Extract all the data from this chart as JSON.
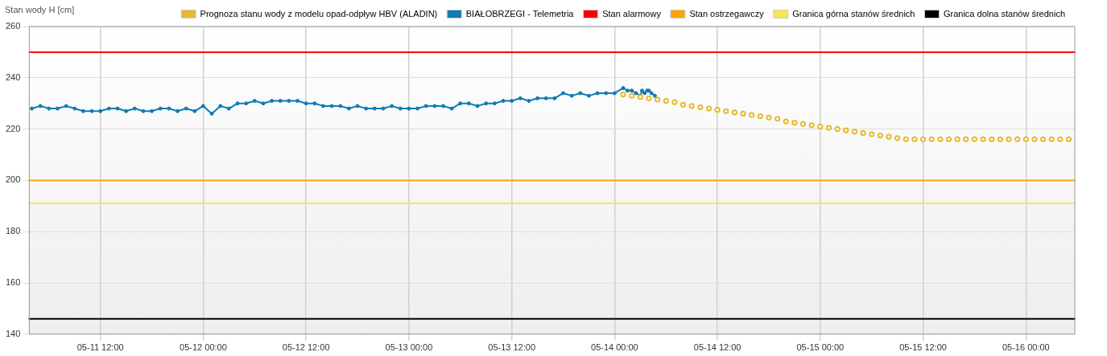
{
  "chart_data": {
    "type": "line",
    "ylabel": "Stan wody H [cm]",
    "legend": "top right",
    "grid": true,
    "marker": "circle",
    "xlim": [
      "--05-11T03:42",
      "--05-16T05:42"
    ],
    "xticks": [
      {
        "value": "--05-11T12:00",
        "label": "05-11 12:00"
      },
      {
        "value": "--05-12T00:00",
        "label": "05-12 00:00"
      },
      {
        "value": "--05-12T12:00",
        "label": "05-12 12:00"
      },
      {
        "value": "--05-13T00:00",
        "label": "05-13 00:00"
      },
      {
        "value": "--05-13T12:00",
        "label": "05-13 12:00"
      },
      {
        "value": "--05-14T00:00",
        "label": "05-14 00:00"
      },
      {
        "value": "--05-14T12:00",
        "label": "05-14 12:00"
      },
      {
        "value": "--05-15T00:00",
        "label": "05-15 00:00"
      },
      {
        "value": "--05-15T12:00",
        "label": "05-15 12:00"
      },
      {
        "value": "--05-16T00:00",
        "label": "05-16 00:00"
      }
    ],
    "ylim": [
      140,
      260
    ],
    "yticks": [
      140,
      160,
      180,
      200,
      220,
      240,
      260
    ],
    "series": [
      {
        "name": "Prognoza stanu wody z modelu opad-odpływ HBV (ALADIN)",
        "type": "scatter",
        "color": "#e8b930",
        "x": [
          "--05-14T01:00",
          "--05-14T02:00",
          "--05-14T03:00",
          "--05-14T04:00",
          "--05-14T05:00",
          "--05-14T06:00",
          "--05-14T07:00",
          "--05-14T08:00",
          "--05-14T09:00",
          "--05-14T10:00",
          "--05-14T11:00",
          "--05-14T12:00",
          "--05-14T13:00",
          "--05-14T14:00",
          "--05-14T15:00",
          "--05-14T16:00",
          "--05-14T17:00",
          "--05-14T18:00",
          "--05-14T19:00",
          "--05-14T20:00",
          "--05-14T21:00",
          "--05-14T22:00",
          "--05-14T23:00",
          "--05-15T00:00",
          "--05-15T01:00",
          "--05-15T02:00",
          "--05-15T03:00",
          "--05-15T04:00",
          "--05-15T05:00",
          "--05-15T06:00",
          "--05-15T07:00",
          "--05-15T08:00",
          "--05-15T09:00",
          "--05-15T10:00",
          "--05-15T11:00",
          "--05-15T12:00",
          "--05-15T13:00",
          "--05-15T14:00",
          "--05-15T15:00",
          "--05-15T16:00",
          "--05-15T17:00",
          "--05-15T18:00",
          "--05-15T19:00",
          "--05-15T20:00",
          "--05-15T21:00",
          "--05-15T22:00",
          "--05-15T23:00",
          "--05-16T00:00",
          "--05-16T01:00",
          "--05-16T02:00",
          "--05-16T03:00",
          "--05-16T04:00",
          "--05-16T05:00"
        ],
        "values": [
          233.5,
          233,
          232.5,
          232,
          231.5,
          231,
          230.5,
          229.5,
          229,
          228.5,
          228,
          227.5,
          227,
          226.5,
          226,
          225.5,
          225,
          224.5,
          224,
          223,
          222.5,
          222,
          221.5,
          221,
          220.5,
          220,
          219.5,
          219,
          218.5,
          218,
          217.5,
          217,
          216.5,
          216,
          216,
          216,
          216,
          216,
          216,
          216,
          216,
          216,
          216,
          216,
          216,
          216,
          216,
          216,
          216,
          216,
          216,
          216,
          216
        ]
      },
      {
        "name": "BIAŁOBRZEGI - Telemetria",
        "type": "line",
        "color": "#0f7cb3",
        "x": [
          "--05-11T04:00",
          "--05-11T05:00",
          "--05-11T06:00",
          "--05-11T07:00",
          "--05-11T08:00",
          "--05-11T09:00",
          "--05-11T10:00",
          "--05-11T11:00",
          "--05-11T12:00",
          "--05-11T13:00",
          "--05-11T14:00",
          "--05-11T15:00",
          "--05-11T16:00",
          "--05-11T17:00",
          "--05-11T18:00",
          "--05-11T19:00",
          "--05-11T20:00",
          "--05-11T21:00",
          "--05-11T22:00",
          "--05-11T23:00",
          "--05-12T00:00",
          "--05-12T01:00",
          "--05-12T02:00",
          "--05-12T03:00",
          "--05-12T04:00",
          "--05-12T05:00",
          "--05-12T06:00",
          "--05-12T07:00",
          "--05-12T08:00",
          "--05-12T09:00",
          "--05-12T10:00",
          "--05-12T11:00",
          "--05-12T12:00",
          "--05-12T13:00",
          "--05-12T14:00",
          "--05-12T15:00",
          "--05-12T16:00",
          "--05-12T17:00",
          "--05-12T18:00",
          "--05-12T19:00",
          "--05-12T20:00",
          "--05-12T21:00",
          "--05-12T22:00",
          "--05-12T23:00",
          "--05-13T00:00",
          "--05-13T01:00",
          "--05-13T02:00",
          "--05-13T03:00",
          "--05-13T04:00",
          "--05-13T05:00",
          "--05-13T06:00",
          "--05-13T07:00",
          "--05-13T08:00",
          "--05-13T09:00",
          "--05-13T10:00",
          "--05-13T11:00",
          "--05-13T12:00",
          "--05-13T13:00",
          "--05-13T14:00",
          "--05-13T15:00",
          "--05-13T16:00",
          "--05-13T17:00",
          "--05-13T18:00",
          "--05-13T19:00",
          "--05-13T20:00",
          "--05-13T21:00",
          "--05-13T22:00",
          "--05-13T23:00",
          "--05-14T00:00",
          "--05-14T01:00",
          "--05-14T01:30",
          "--05-14T02:00",
          "--05-14T02:30",
          "--05-14T03:00",
          "--05-14T03:12",
          "--05-14T03:30",
          "--05-14T03:48",
          "--05-14T04:00",
          "--05-14T04:18",
          "--05-14T04:42"
        ],
        "values": [
          228,
          229,
          228,
          228,
          229,
          228,
          227,
          227,
          227,
          228,
          228,
          227,
          228,
          227,
          227,
          228,
          228,
          227,
          228,
          227,
          229,
          226,
          229,
          228,
          230,
          230,
          231,
          230,
          231,
          231,
          231,
          231,
          230,
          230,
          229,
          229,
          229,
          228,
          229,
          228,
          228,
          228,
          229,
          228,
          228,
          228,
          229,
          229,
          229,
          228,
          230,
          230,
          229,
          230,
          230,
          231,
          231,
          232,
          231,
          232,
          232,
          232,
          234,
          233,
          234,
          233,
          234,
          234,
          234,
          236,
          235,
          235,
          234,
          233,
          235,
          234,
          235,
          235,
          234,
          233
        ]
      },
      {
        "name": "Stan alarmowy",
        "type": "line",
        "marker": "none",
        "color": "#ff0000",
        "x": [
          "--05-11T03:42",
          "--05-16T05:42"
        ],
        "values": [
          250,
          250
        ]
      },
      {
        "name": "Stan ostrzegawczy",
        "type": "line",
        "marker": "none",
        "color": "#ffa500",
        "x": [
          "--05-11T03:42",
          "--05-16T05:42"
        ],
        "values": [
          200,
          200
        ]
      },
      {
        "name": "Granica górna stanów średnich",
        "type": "line",
        "marker": "none",
        "color": "#f6e84a",
        "x": [
          "--05-11T03:42",
          "--05-16T05:42"
        ],
        "values": [
          191,
          191
        ]
      },
      {
        "name": "Granica dolna stanów średnich",
        "type": "line",
        "marker": "none",
        "color": "#000000",
        "x": [
          "--05-11T03:42",
          "--05-16T05:42"
        ],
        "values": [
          146,
          146
        ]
      }
    ]
  }
}
